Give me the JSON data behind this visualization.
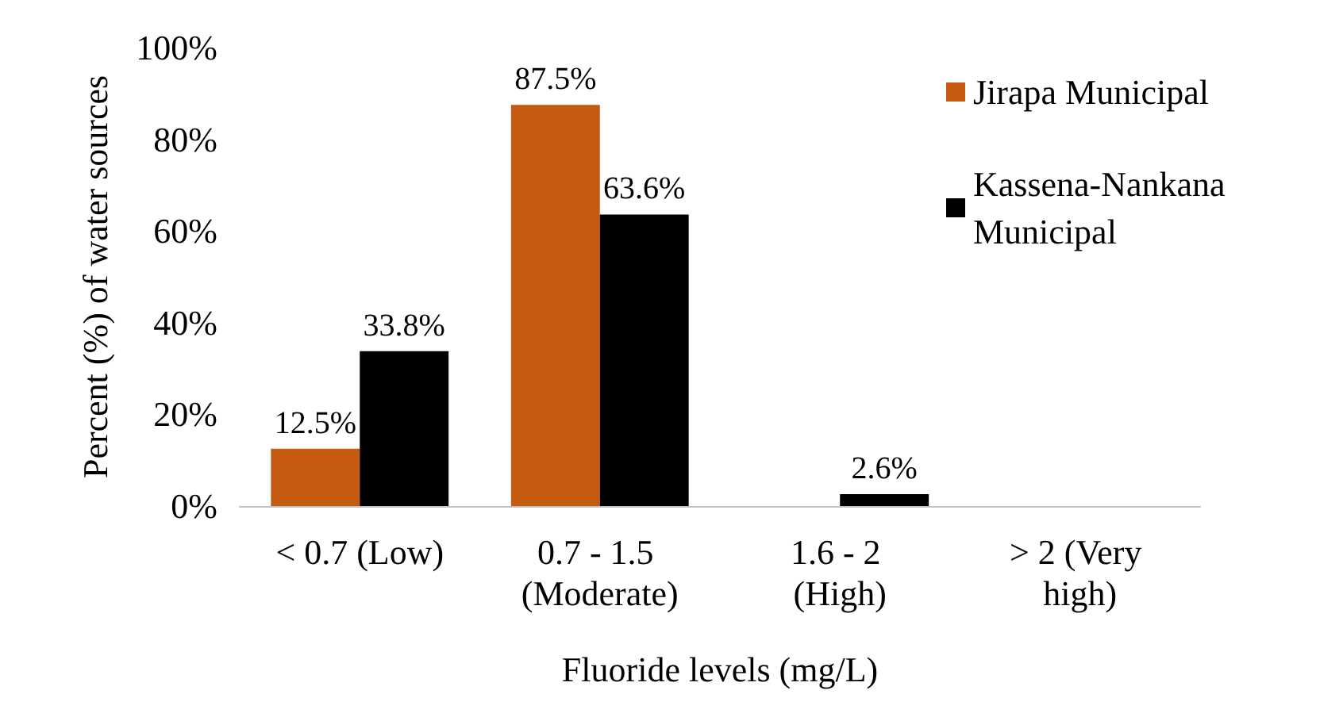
{
  "chart_data": {
    "type": "bar",
    "xlabel": "Fluoride levels (mg/L)",
    "ylabel": "Percent (%) of water sources",
    "categories": [
      "< 0.7 (Low)",
      "0.7 - 1.5 (Moderate)",
      "1.6 - 2 (High)",
      "> 2 (Very high)"
    ],
    "series": [
      {
        "name": "Jirapa Municipal",
        "color": "#c55a11",
        "values": [
          12.5,
          87.5,
          0,
          0
        ],
        "value_labels": [
          "12.5%",
          "87.5%",
          null,
          null
        ]
      },
      {
        "name": "Kassena-Nankana Municipal",
        "color": "#000000",
        "values": [
          33.8,
          63.6,
          2.6,
          0
        ],
        "value_labels": [
          "33.8%",
          "63.6%",
          "2.6%",
          null
        ]
      }
    ],
    "ylim": [
      0,
      100
    ],
    "yticks": [
      {
        "value": 0,
        "label": "0%"
      },
      {
        "value": 20,
        "label": "20%"
      },
      {
        "value": 40,
        "label": "40%"
      },
      {
        "value": 60,
        "label": "60%"
      },
      {
        "value": 80,
        "label": "80%"
      },
      {
        "value": 100,
        "label": "100%"
      }
    ],
    "grid": false,
    "legend": "top right"
  }
}
